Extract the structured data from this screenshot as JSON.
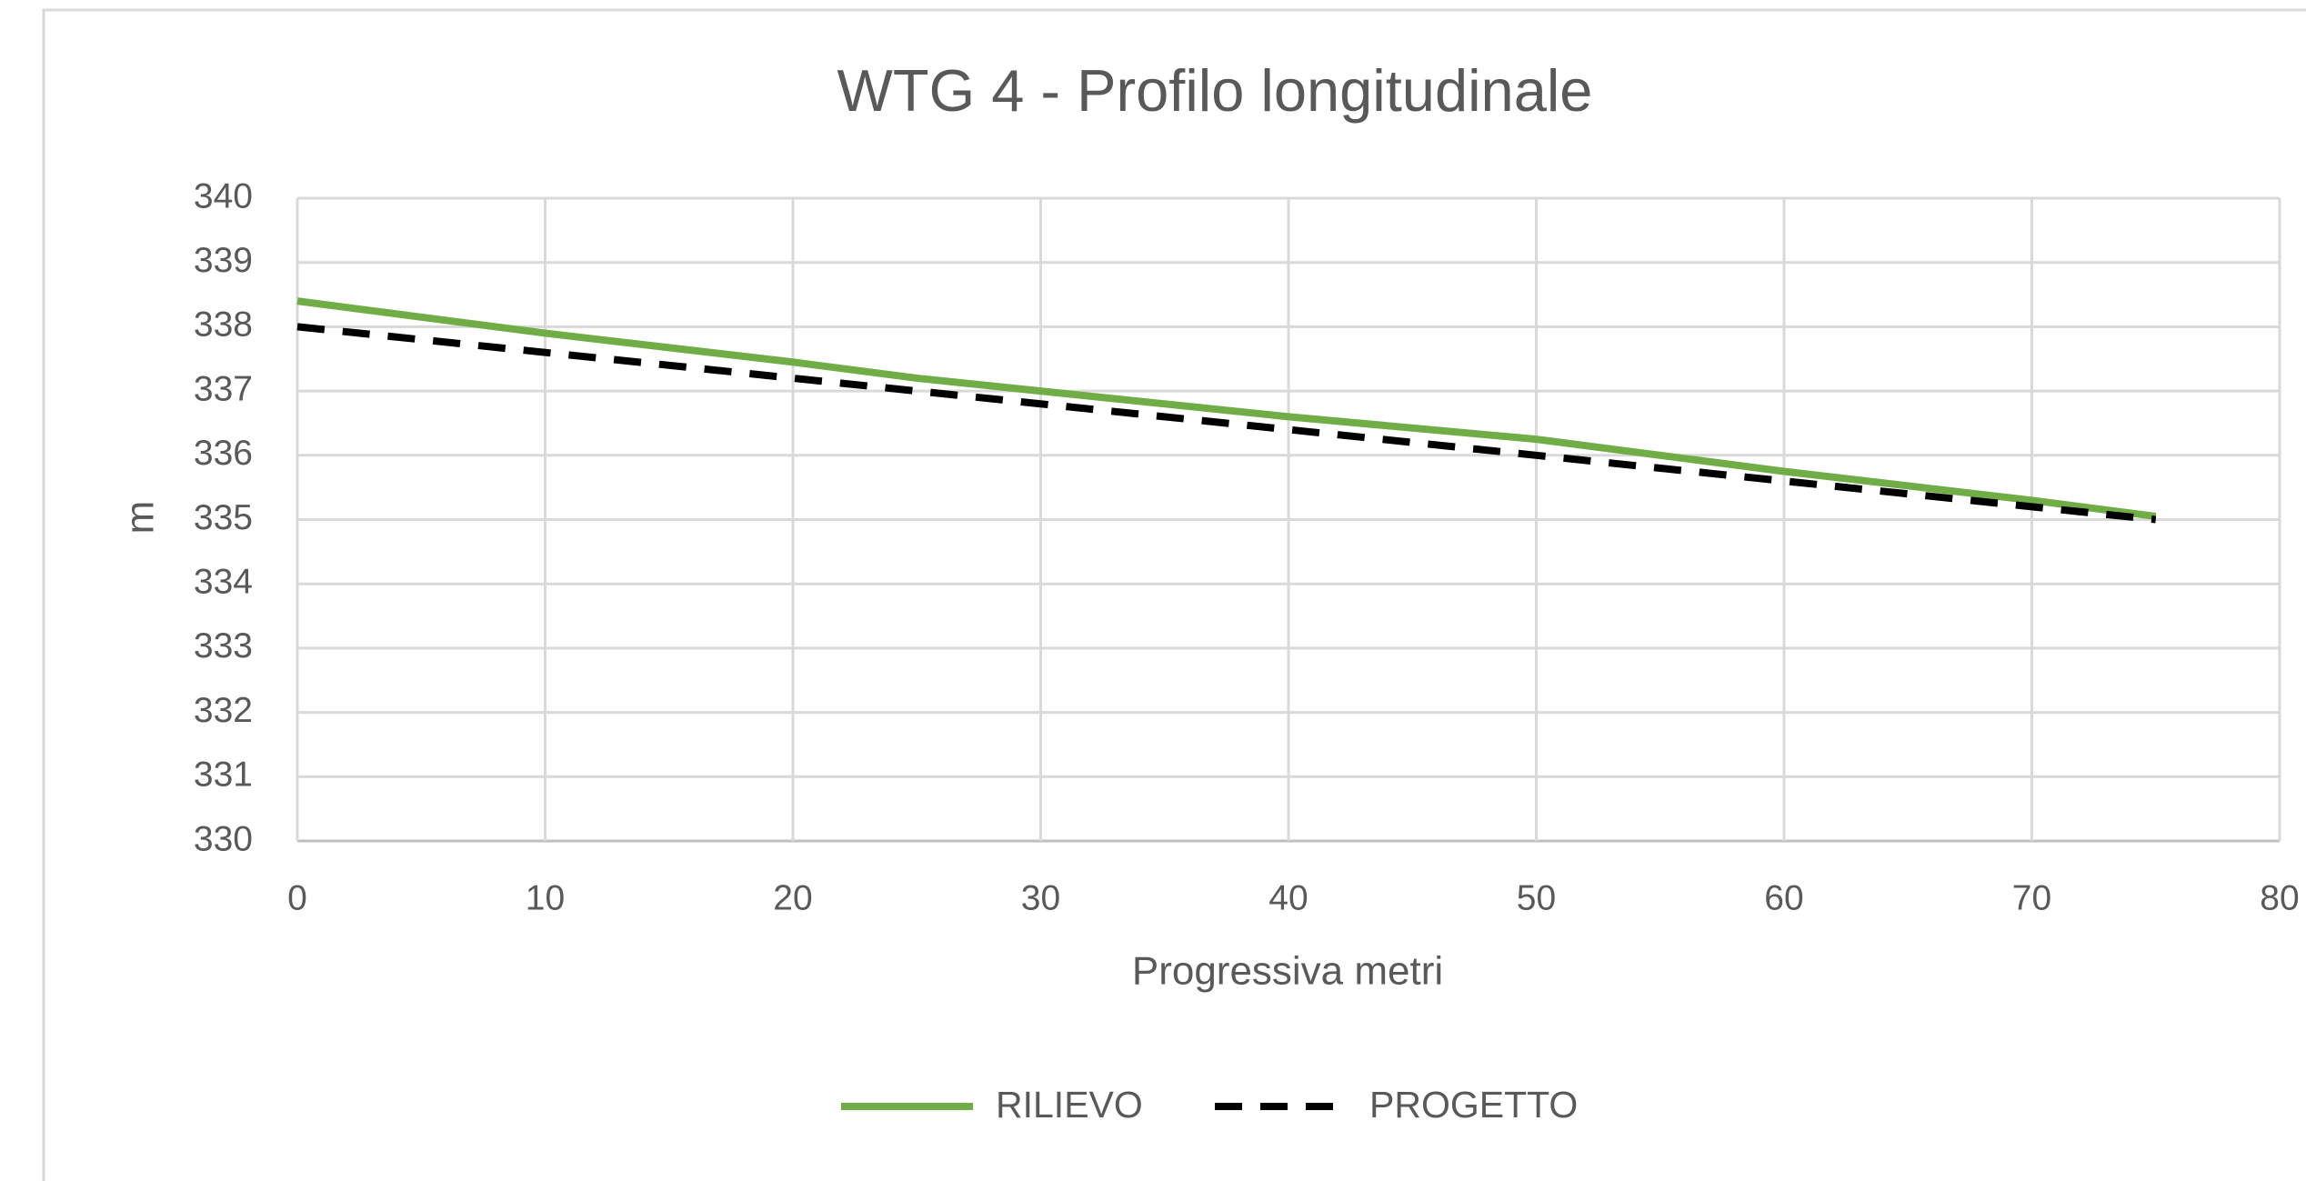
{
  "chart_data": {
    "type": "line",
    "title": "WTG 4 - Profilo longitudinale",
    "x_label": "Progressiva  metri",
    "y_label": "m",
    "series": [
      {
        "name": "RILIEVO",
        "color": "#70ad47",
        "dash": false,
        "x": [
          0,
          10,
          20,
          25,
          30,
          40,
          50,
          60,
          70,
          75
        ],
        "values": [
          338.4,
          337.9,
          337.45,
          337.2,
          337.0,
          336.6,
          336.25,
          335.75,
          335.3,
          335.05
        ]
      },
      {
        "name": "PROGETTO",
        "color": "#000000",
        "dash": true,
        "x": [
          0,
          10,
          20,
          30,
          40,
          50,
          60,
          70,
          75
        ],
        "values": [
          338.0,
          337.6,
          337.2,
          336.8,
          336.4,
          336.0,
          335.6,
          335.2,
          335.0
        ]
      }
    ],
    "xlim": [
      0,
      80
    ],
    "xticks": [
      0,
      10,
      20,
      30,
      40,
      50,
      60,
      70,
      80
    ],
    "ylim": [
      330,
      340
    ],
    "yticks": [
      330,
      331,
      332,
      333,
      334,
      335,
      336,
      337,
      338,
      339,
      340
    ],
    "grid": true,
    "legend": "bottom"
  }
}
